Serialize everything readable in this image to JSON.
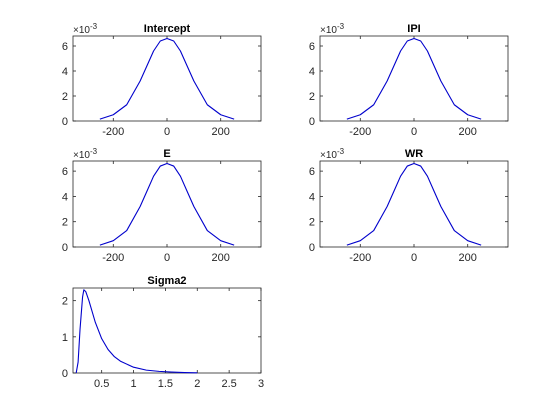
{
  "colors": {
    "line": "#0000cc",
    "axes": "#262626",
    "background": "#ffffff"
  },
  "chart_data": [
    {
      "type": "line",
      "title": "Intercept",
      "x_range": [
        -350,
        350
      ],
      "y_range": [
        0,
        0.0068
      ],
      "x_ticks": [
        -200,
        0,
        200
      ],
      "y_ticks": [
        0,
        2,
        4,
        6
      ],
      "y_tick_labels": [
        "0",
        "2",
        "4",
        "6"
      ],
      "y_exponent_label": "×10",
      "y_exponent": "-3",
      "series": [
        {
          "x": [
            -250,
            -200,
            -150,
            -100,
            -75,
            -50,
            -25,
            0,
            25,
            50,
            75,
            100,
            150,
            200,
            250
          ],
          "y": [
            0.00015,
            0.0005,
            0.0013,
            0.0032,
            0.0044,
            0.0056,
            0.0064,
            0.0066,
            0.0064,
            0.0056,
            0.0044,
            0.0032,
            0.0013,
            0.0005,
            0.00015
          ]
        }
      ]
    },
    {
      "type": "line",
      "title": "IPI",
      "x_range": [
        -350,
        350
      ],
      "y_range": [
        0,
        0.0068
      ],
      "x_ticks": [
        -200,
        0,
        200
      ],
      "y_ticks": [
        0,
        2,
        4,
        6
      ],
      "y_tick_labels": [
        "0",
        "2",
        "4",
        "6"
      ],
      "y_exponent_label": "×10",
      "y_exponent": "-3",
      "series": [
        {
          "x": [
            -250,
            -200,
            -150,
            -100,
            -75,
            -50,
            -25,
            0,
            25,
            50,
            75,
            100,
            150,
            200,
            250
          ],
          "y": [
            0.00015,
            0.0005,
            0.0013,
            0.0032,
            0.0044,
            0.0056,
            0.0064,
            0.0066,
            0.0064,
            0.0056,
            0.0044,
            0.0032,
            0.0013,
            0.0005,
            0.00015
          ]
        }
      ]
    },
    {
      "type": "line",
      "title": "E",
      "x_range": [
        -350,
        350
      ],
      "y_range": [
        0,
        0.0068
      ],
      "x_ticks": [
        -200,
        0,
        200
      ],
      "y_ticks": [
        0,
        2,
        4,
        6
      ],
      "y_tick_labels": [
        "0",
        "2",
        "4",
        "6"
      ],
      "y_exponent_label": "×10",
      "y_exponent": "-3",
      "series": [
        {
          "x": [
            -250,
            -200,
            -150,
            -100,
            -75,
            -50,
            -25,
            0,
            25,
            50,
            75,
            100,
            150,
            200,
            250
          ],
          "y": [
            0.00015,
            0.0005,
            0.0013,
            0.0032,
            0.0044,
            0.0056,
            0.0064,
            0.0066,
            0.0064,
            0.0056,
            0.0044,
            0.0032,
            0.0013,
            0.0005,
            0.00015
          ]
        }
      ]
    },
    {
      "type": "line",
      "title": "WR",
      "x_range": [
        -350,
        350
      ],
      "y_range": [
        0,
        0.0068
      ],
      "x_ticks": [
        -200,
        0,
        200
      ],
      "y_ticks": [
        0,
        2,
        4,
        6
      ],
      "y_tick_labels": [
        "0",
        "2",
        "4",
        "6"
      ],
      "y_exponent_label": "×10",
      "y_exponent": "-3",
      "series": [
        {
          "x": [
            -250,
            -200,
            -150,
            -100,
            -75,
            -50,
            -25,
            0,
            25,
            50,
            75,
            100,
            150,
            200,
            250
          ],
          "y": [
            0.00015,
            0.0005,
            0.0013,
            0.0032,
            0.0044,
            0.0056,
            0.0064,
            0.0066,
            0.0064,
            0.0056,
            0.0044,
            0.0032,
            0.0013,
            0.0005,
            0.00015
          ]
        }
      ]
    },
    {
      "type": "line",
      "title": "Sigma2",
      "x_range": [
        0.05,
        3
      ],
      "y_range": [
        0,
        2.35
      ],
      "x_ticks": [
        0.5,
        1,
        1.5,
        2,
        2.5,
        3
      ],
      "y_ticks": [
        0,
        1,
        2
      ],
      "y_tick_labels": [
        "0",
        "1",
        "2"
      ],
      "series": [
        {
          "x": [
            0.1,
            0.13,
            0.16,
            0.2,
            0.22,
            0.25,
            0.3,
            0.35,
            0.4,
            0.5,
            0.6,
            0.7,
            0.8,
            1.0,
            1.2,
            1.4,
            1.6,
            1.8,
            2.0
          ],
          "y": [
            0.0,
            0.3,
            1.2,
            2.1,
            2.3,
            2.25,
            2.0,
            1.7,
            1.4,
            0.95,
            0.65,
            0.45,
            0.32,
            0.16,
            0.08,
            0.045,
            0.025,
            0.012,
            0.006
          ]
        }
      ]
    }
  ]
}
